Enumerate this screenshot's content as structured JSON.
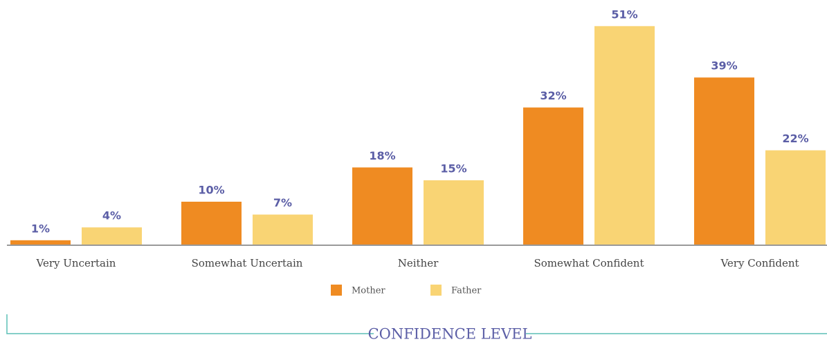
{
  "chart_data": {
    "type": "bar",
    "x_label": "CONFIDENCE LEVEL",
    "categories": [
      "Very Uncertain",
      "Somewhat Uncertain",
      "Neither",
      "Somewhat Confident",
      "Very Confident"
    ],
    "series": [
      {
        "name": "Mother",
        "color": "#ef8b22",
        "values": [
          1,
          10,
          18,
          32,
          39
        ],
        "value_labels": [
          "1%",
          "10%",
          "18%",
          "32%",
          "39%"
        ]
      },
      {
        "name": "Father",
        "color": "#f9d474",
        "values": [
          4,
          7,
          15,
          51,
          22
        ],
        "value_labels": [
          "4%",
          "7%",
          "15%",
          "51%",
          "22%"
        ]
      }
    ],
    "legend": "bottom"
  }
}
